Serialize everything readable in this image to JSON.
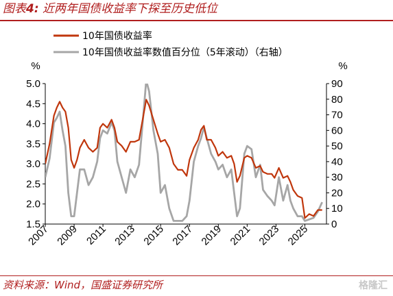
{
  "figure": {
    "label": "图表",
    "number": "4:",
    "title": "近两年国债收益率下探至历史低位",
    "source": "资料来源：Wind，国盛证券研究所",
    "watermark": "格隆汇"
  },
  "colors": {
    "yield": "#c0360c",
    "percentile": "#a6a6a6",
    "accent": "#b01e1e"
  },
  "chart_data": {
    "type": "line",
    "legend_position": "top",
    "grid": false,
    "left_axis": {
      "unit_label": "%",
      "range": [
        1.5,
        5.0
      ],
      "ticks": [
        "5.0",
        "4.5",
        "4.0",
        "3.5",
        "3.0",
        "2.5",
        "2.0",
        "1.5"
      ]
    },
    "right_axis": {
      "unit_label": "%",
      "range": [
        0,
        90
      ],
      "ticks": [
        "90",
        "80",
        "70",
        "60",
        "50",
        "40",
        "30",
        "20",
        "10",
        "0"
      ]
    },
    "x_axis": {
      "range": [
        2007.0,
        2026.5
      ],
      "ticks": [
        "2007",
        "2009",
        "2011",
        "2013",
        "2015",
        "2017",
        "2019",
        "2021",
        "2023",
        "2025"
      ]
    },
    "series": [
      {
        "name": "10年国债收益率",
        "axis": "left",
        "x": [
          2007.0,
          2007.3,
          2007.6,
          2007.8,
          2008.0,
          2008.2,
          2008.4,
          2008.6,
          2008.8,
          2009.0,
          2009.2,
          2009.4,
          2009.7,
          2010.0,
          2010.3,
          2010.6,
          2010.8,
          2011.0,
          2011.3,
          2011.6,
          2011.8,
          2012.0,
          2012.3,
          2012.6,
          2012.9,
          2013.2,
          2013.5,
          2013.8,
          2014.0,
          2014.2,
          2014.5,
          2014.8,
          2015.0,
          2015.3,
          2015.6,
          2015.9,
          2016.2,
          2016.5,
          2016.8,
          2017.0,
          2017.3,
          2017.6,
          2017.8,
          2018.0,
          2018.2,
          2018.5,
          2018.8,
          2019.0,
          2019.3,
          2019.6,
          2019.9,
          2020.1,
          2020.3,
          2020.5,
          2020.8,
          2021.0,
          2021.3,
          2021.6,
          2021.9,
          2022.1,
          2022.4,
          2022.7,
          2022.9,
          2023.2,
          2023.5,
          2023.8,
          2024.0,
          2024.2,
          2024.5,
          2024.8,
          2025.0,
          2025.3,
          2025.6,
          2025.9,
          2026.2
        ],
        "y": [
          3.0,
          3.5,
          4.2,
          4.4,
          4.55,
          4.4,
          4.3,
          3.9,
          3.1,
          2.9,
          3.1,
          3.4,
          3.6,
          3.4,
          3.3,
          3.4,
          3.9,
          4.0,
          3.9,
          4.1,
          3.9,
          3.55,
          3.45,
          3.3,
          3.55,
          3.55,
          3.6,
          4.2,
          4.6,
          4.45,
          4.1,
          3.75,
          3.55,
          3.6,
          3.4,
          3.0,
          2.85,
          2.85,
          2.7,
          3.1,
          3.4,
          3.6,
          3.85,
          3.95,
          3.6,
          3.6,
          3.4,
          3.2,
          3.3,
          3.15,
          3.2,
          3.0,
          2.55,
          2.7,
          3.15,
          3.2,
          3.15,
          2.9,
          2.95,
          2.8,
          2.75,
          2.75,
          2.65,
          2.9,
          2.65,
          2.7,
          2.55,
          2.35,
          2.2,
          2.15,
          1.65,
          1.75,
          1.7,
          1.85,
          1.85
        ]
      },
      {
        "name": "10年国债收益率数值百分位（5年滚动）（右轴）",
        "axis": "right",
        "x": [
          2007.0,
          2007.3,
          2007.6,
          2007.8,
          2008.0,
          2008.2,
          2008.4,
          2008.6,
          2008.8,
          2009.0,
          2009.2,
          2009.4,
          2009.7,
          2010.0,
          2010.3,
          2010.6,
          2010.8,
          2011.0,
          2011.3,
          2011.6,
          2011.8,
          2012.0,
          2012.3,
          2012.6,
          2012.9,
          2013.2,
          2013.5,
          2013.8,
          2014.0,
          2014.2,
          2014.5,
          2014.8,
          2015.0,
          2015.3,
          2015.6,
          2015.9,
          2016.2,
          2016.5,
          2016.8,
          2017.0,
          2017.3,
          2017.6,
          2017.8,
          2018.0,
          2018.2,
          2018.5,
          2018.8,
          2019.0,
          2019.3,
          2019.6,
          2019.9,
          2020.1,
          2020.3,
          2020.5,
          2020.8,
          2021.0,
          2021.3,
          2021.6,
          2021.9,
          2022.1,
          2022.4,
          2022.7,
          2022.9,
          2023.2,
          2023.5,
          2023.8,
          2024.0,
          2024.2,
          2024.5,
          2024.8,
          2025.0,
          2025.3,
          2025.6,
          2025.9,
          2026.2
        ],
        "y": [
          30,
          42,
          65,
          68,
          72,
          60,
          50,
          20,
          5,
          5,
          20,
          35,
          35,
          25,
          30,
          40,
          55,
          60,
          58,
          65,
          60,
          40,
          30,
          20,
          35,
          30,
          38,
          70,
          92,
          85,
          60,
          45,
          20,
          25,
          10,
          2,
          2,
          2,
          5,
          15,
          40,
          50,
          55,
          62,
          55,
          45,
          40,
          35,
          38,
          30,
          35,
          20,
          5,
          10,
          45,
          50,
          48,
          30,
          38,
          22,
          18,
          15,
          12,
          30,
          15,
          25,
          15,
          10,
          5,
          5,
          2,
          3,
          4,
          8,
          14
        ]
      }
    ]
  }
}
